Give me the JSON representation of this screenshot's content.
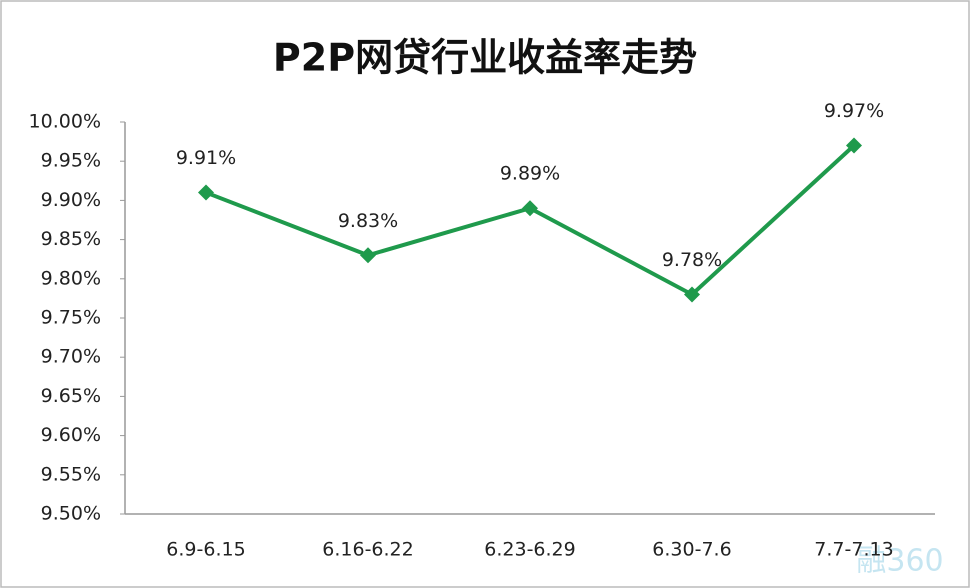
{
  "chart_data": {
    "type": "line",
    "title": "P2P网贷行业收益率走势",
    "categories": [
      "6.9-6.15",
      "6.16-6.22",
      "6.23-6.29",
      "6.30-7.6",
      "7.7-7.13"
    ],
    "values": [
      9.91,
      9.83,
      9.89,
      9.78,
      9.97
    ],
    "value_labels": [
      "9.91%",
      "9.83%",
      "9.89%",
      "9.78%",
      "9.97%"
    ],
    "color": "#1f9a4c",
    "ylim": [
      9.5,
      10.0
    ],
    "yticks": [
      {
        "value": 9.5,
        "label": "9.50%"
      },
      {
        "value": 9.55,
        "label": "9.55%"
      },
      {
        "value": 9.6,
        "label": "9.60%"
      },
      {
        "value": 9.65,
        "label": "9.65%"
      },
      {
        "value": 9.7,
        "label": "9.70%"
      },
      {
        "value": 9.75,
        "label": "9.75%"
      },
      {
        "value": 9.8,
        "label": "9.80%"
      },
      {
        "value": 9.85,
        "label": "9.85%"
      },
      {
        "value": 9.9,
        "label": "9.90%"
      },
      {
        "value": 9.95,
        "label": "9.95%"
      },
      {
        "value": 10.0,
        "label": "10.00%"
      }
    ],
    "grid": false,
    "watermark": "融360"
  }
}
